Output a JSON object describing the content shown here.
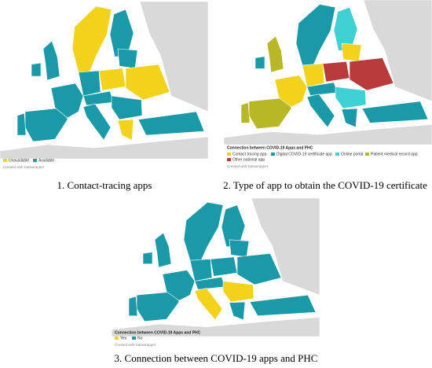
{
  "panels": [
    {
      "legend": {
        "items": [
          "Unavailable",
          "Available"
        ]
      },
      "credit": "Created with Datawrapper",
      "caption": "1. Contact-tracing apps"
    },
    {
      "legend": {
        "title": "Connection between COVID-19 Apps and PHC",
        "items": [
          "Contact tracing app",
          "Digital COVID-19 certificate app",
          "Online portal",
          "Patient medical record app",
          "Other national app"
        ]
      },
      "credit": "Created with Datawrapper",
      "caption": "2. Type of app to obtain the COVID-19 certificate"
    },
    {
      "legend": {
        "title": "Connection between COVID-19 Apps and PHC",
        "items": [
          "Yes",
          "No"
        ]
      },
      "credit": "Created with Datawrapper",
      "caption": "3. Connection between COVID-19 apps and PHC"
    }
  ]
}
